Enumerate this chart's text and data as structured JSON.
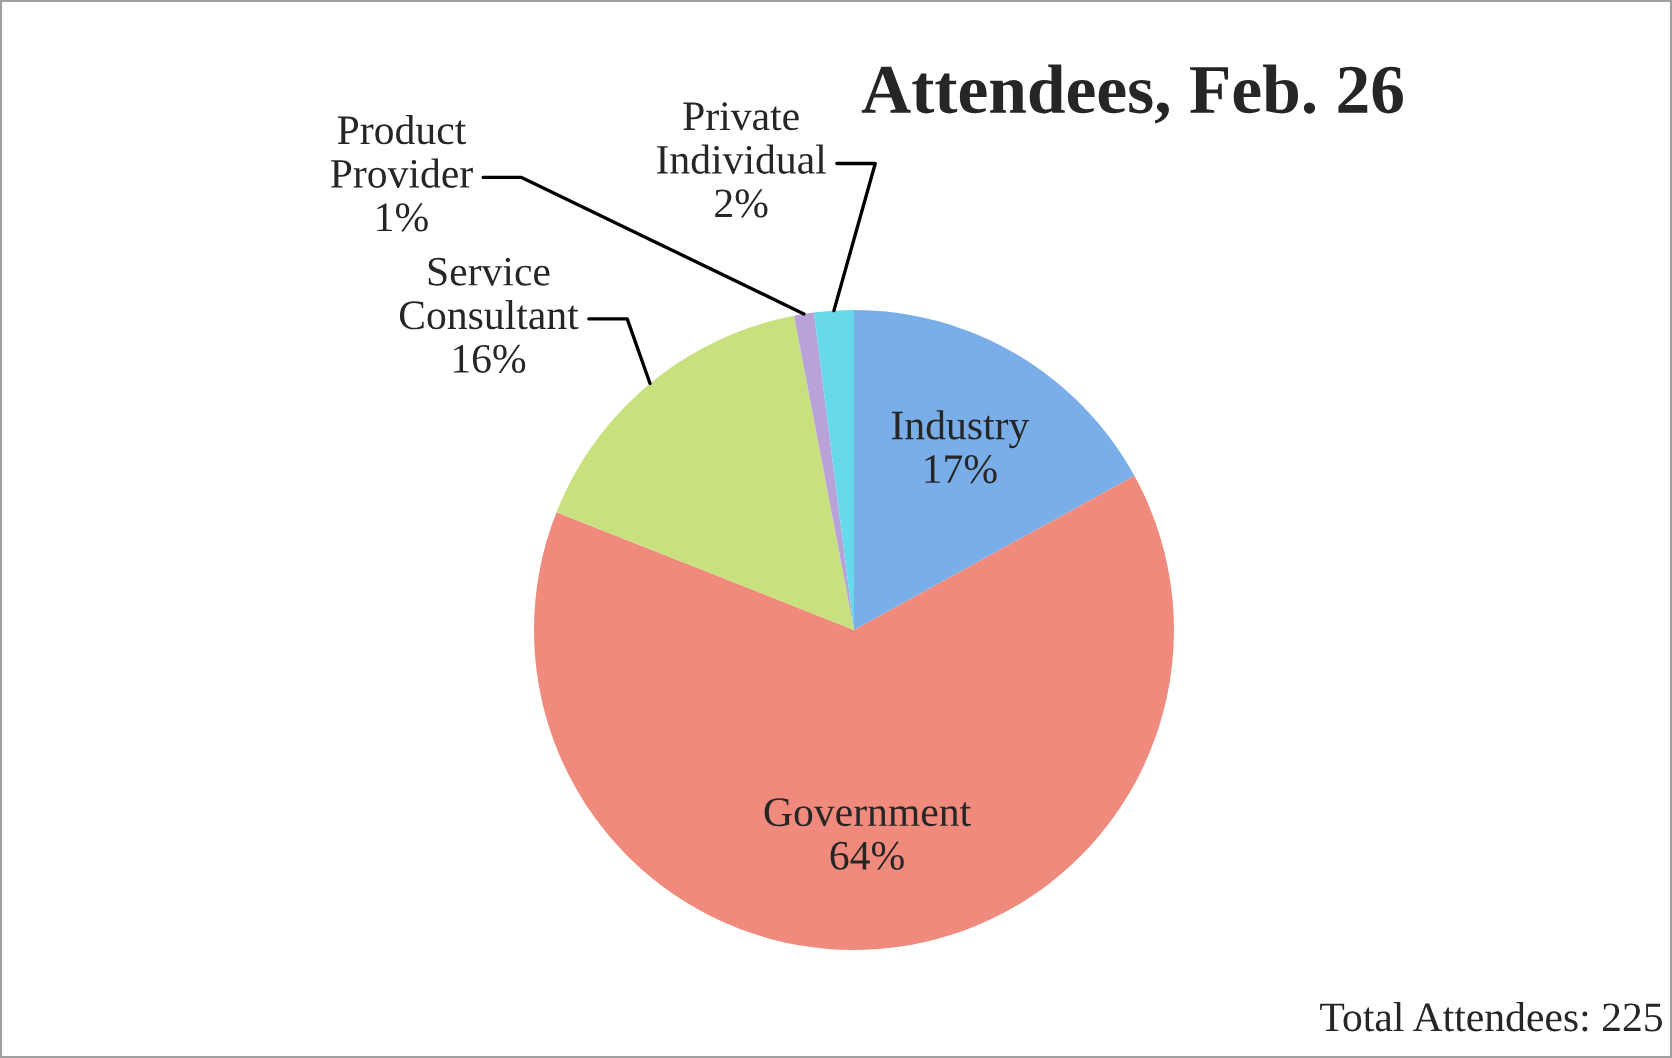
{
  "chart_data": {
    "type": "pie",
    "title": "Attendees, Feb. 26",
    "categories": [
      "Industry",
      "Government",
      "Service Consultant",
      "Product Provider",
      "Private Individual"
    ],
    "values": [
      17,
      64,
      16,
      1,
      2
    ],
    "colors": [
      "#7aaee8",
      "#ef8a7c",
      "#c8e07e",
      "#b9a2d8",
      "#66d9ea"
    ],
    "value_labels": [
      "17%",
      "64%",
      "16%",
      "1%",
      "2%"
    ],
    "legend": false,
    "annotations": [
      "Total Attendees: 225"
    ]
  }
}
